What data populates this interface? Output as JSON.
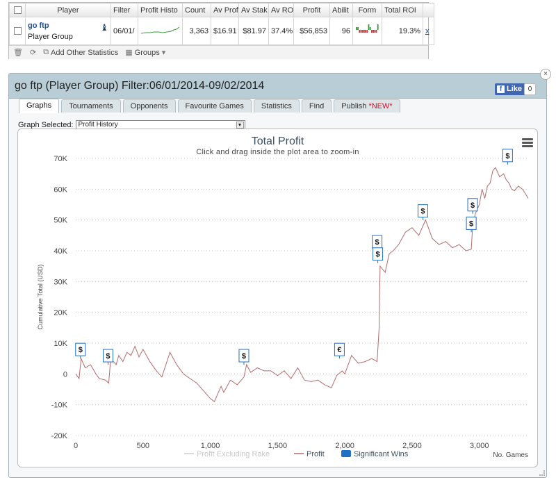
{
  "stats": {
    "headers": [
      "Player",
      "Filter",
      "Profit Histo",
      "Count",
      "Av Prof",
      "Av Stak",
      "Av RO",
      "Profit",
      "Abilit",
      "Form",
      "Total ROI"
    ],
    "row": {
      "player_name": "go ftp",
      "player_group": "Player Group",
      "filter": "06/01/",
      "count": "3,363",
      "av_profit": "$16.91",
      "av_stake": "$81.97",
      "av_roi": "37.4%",
      "profit": "$56,853",
      "ability": "96",
      "total_roi": "19.3%",
      "remove": "x"
    },
    "toolbar": {
      "add_stats": "Add Other Statistics",
      "groups": "Groups"
    },
    "sparkline_color": "#3a9a3a",
    "form_colors": {
      "loss": "#c23b3b",
      "win": "#3a9a3a"
    },
    "form": [
      1,
      1,
      -1,
      -1,
      -1,
      -1,
      -1,
      -1,
      2,
      1,
      -1,
      -1,
      -1,
      -1,
      2
    ]
  },
  "window": {
    "title": "go ftp (Player Group) Filter:06/01/2014-09/02/2014",
    "like_label": "Like",
    "like_count": "0",
    "close": "×",
    "tabs": [
      {
        "label": "Graphs",
        "active": true
      },
      {
        "label": "Tournaments"
      },
      {
        "label": "Opponents"
      },
      {
        "label": "Favourite Games"
      },
      {
        "label": "Statistics"
      },
      {
        "label": "Find"
      },
      {
        "label": "Publish",
        "tag": "*NEW*"
      }
    ],
    "graph_selected_label": "Graph Selected:",
    "graph_selected_value": "Profit History"
  },
  "chart_data": {
    "type": "line",
    "title": "Total Profit",
    "subtitle": "Click and drag inside the plot area to zoom-in",
    "ylabel": "Cumulative Total (USD)",
    "xlabel": "No. Games",
    "xlim": [
      0,
      3363
    ],
    "ylim": [
      -20000,
      70000
    ],
    "x_ticks": [
      0,
      500,
      1000,
      1500,
      2000,
      2500,
      3000
    ],
    "x_tick_labels": [
      "0",
      "500",
      "1,000",
      "1,500",
      "2,000",
      "2,500",
      "3,000"
    ],
    "y_ticks": [
      -20000,
      -10000,
      0,
      10000,
      20000,
      30000,
      40000,
      50000,
      60000,
      70000
    ],
    "y_tick_labels": [
      "-20K",
      "-10K",
      "0",
      "10K",
      "20K",
      "30K",
      "40K",
      "50K",
      "60K",
      "70K"
    ],
    "grid": "horizontal dotted",
    "line_color": "#b26b6b",
    "highlight_color": "#1f6fc4",
    "legend": [
      {
        "name": "Profit Excluding Rake",
        "color": "#cccccc",
        "style": "line"
      },
      {
        "name": "Profit",
        "color": "#b26b6b",
        "style": "line"
      },
      {
        "name": "Significant Wins",
        "color": "#1f6fc4",
        "style": "box"
      }
    ],
    "series": [
      {
        "name": "Profit",
        "x": [
          0,
          25,
          40,
          70,
          110,
          150,
          175,
          220,
          245,
          260,
          300,
          320,
          350,
          380,
          410,
          440,
          470,
          500,
          550,
          600,
          640,
          700,
          750,
          800,
          850,
          900,
          950,
          1000,
          1030,
          1080,
          1100,
          1150,
          1200,
          1250,
          1270,
          1300,
          1350,
          1400,
          1450,
          1500,
          1550,
          1600,
          1650,
          1700,
          1750,
          1800,
          1850,
          1900,
          1940,
          1980,
          2000,
          2050,
          2100,
          2150,
          2200,
          2240,
          2255,
          2262,
          2280,
          2300,
          2330,
          2360,
          2400,
          2450,
          2500,
          2550,
          2580,
          2600,
          2650,
          2700,
          2750,
          2800,
          2850,
          2900,
          2940,
          2950,
          2970,
          3000,
          3020,
          3040,
          3060,
          3080,
          3100,
          3120,
          3150,
          3180,
          3200,
          3220,
          3240,
          3260,
          3290,
          3320,
          3350,
          3363
        ],
        "y": [
          0,
          -1500,
          5000,
          2000,
          3000,
          0,
          -1500,
          -2000,
          -3000,
          5000,
          3000,
          6000,
          4000,
          7000,
          6000,
          9000,
          5500,
          8000,
          4000,
          1000,
          -1000,
          7000,
          3000,
          0,
          -1500,
          -3000,
          -5500,
          -8000,
          -9000,
          -4000,
          -6000,
          -2000,
          -3500,
          -1000,
          3000,
          500,
          2000,
          1000,
          1000,
          -500,
          1000,
          -1500,
          2000,
          -2000,
          -2500,
          -2000,
          -3500,
          -4500,
          -500,
          1000,
          0,
          6000,
          3500,
          4000,
          5000,
          4000,
          15000,
          35000,
          34000,
          33000,
          39000,
          40000,
          42000,
          46000,
          47500,
          45000,
          48000,
          50000,
          44000,
          42000,
          43000,
          41000,
          42000,
          40000,
          40500,
          48000,
          52000,
          55000,
          60000,
          57000,
          61000,
          62000,
          66000,
          67000,
          64000,
          65000,
          63000,
          62000,
          60000,
          59500,
          61000,
          60000,
          58000,
          57000
        ]
      }
    ],
    "significant_wins": [
      {
        "x": 35,
        "y": 5000,
        "label": "$"
      },
      {
        "x": 240,
        "y": 3000,
        "label": "$"
      },
      {
        "x": 1250,
        "y": 3000,
        "label": "$"
      },
      {
        "x": 1960,
        "y": 5000,
        "label": "€"
      },
      {
        "x": 2240,
        "y": 40000,
        "label": "$"
      },
      {
        "x": 2245,
        "y": 36000,
        "label": "$"
      },
      {
        "x": 2580,
        "y": 50000,
        "label": "$"
      },
      {
        "x": 2940,
        "y": 46000,
        "label": "$"
      },
      {
        "x": 2950,
        "y": 52000,
        "label": "$"
      },
      {
        "x": 3210,
        "y": 68000,
        "label": "$"
      }
    ]
  }
}
